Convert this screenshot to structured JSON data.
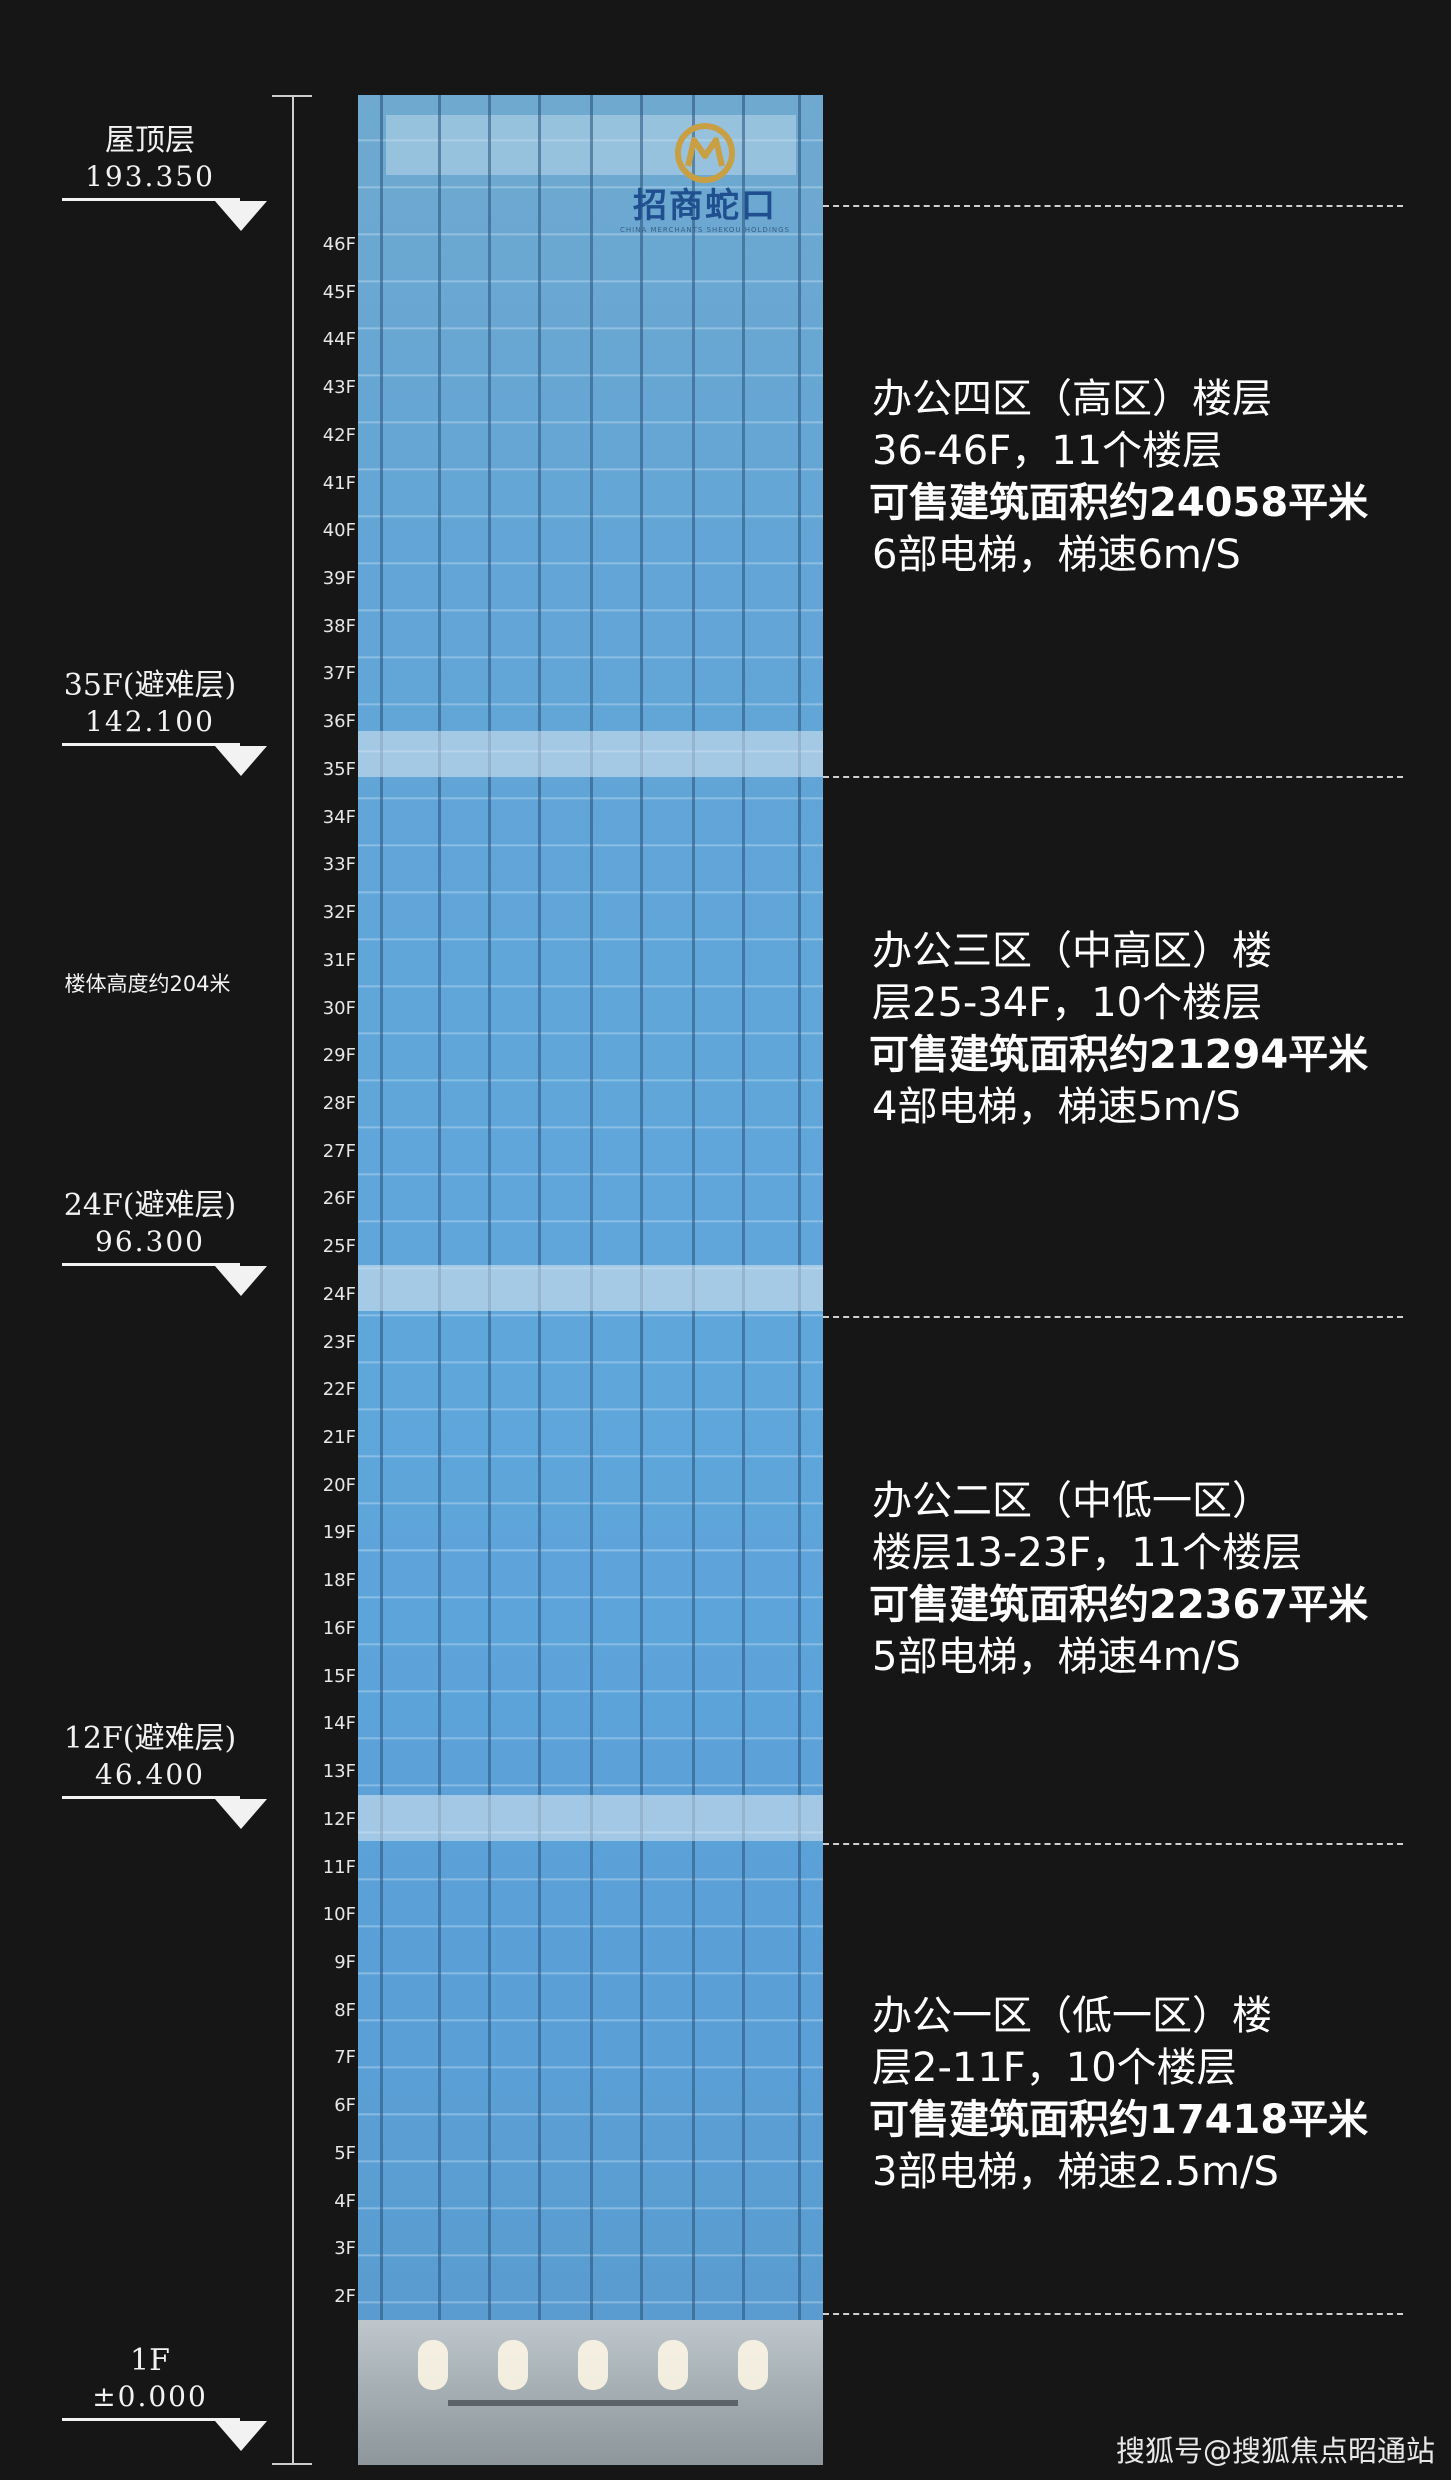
{
  "levels": [
    {
      "name": "屋顶层",
      "elevation": "193.350"
    },
    {
      "name": "35F(避难层)",
      "elevation": "142.100"
    },
    {
      "name": "24F(避难层)",
      "elevation": "96.300"
    },
    {
      "name": "12F(避难层)",
      "elevation": "46.400"
    },
    {
      "name": "1F",
      "elevation": "±0.000"
    }
  ],
  "height_note": "楼体高度约204米",
  "floors": [
    "46F",
    "45F",
    "44F",
    "43F",
    "42F",
    "41F",
    "40F",
    "39F",
    "38F",
    "37F",
    "36F",
    "35F",
    "34F",
    "33F",
    "32F",
    "31F",
    "30F",
    "29F",
    "28F",
    "27F",
    "26F",
    "25F",
    "24F",
    "23F",
    "22F",
    "21F",
    "20F",
    "19F",
    "18F",
    "16F",
    "15F",
    "14F",
    "13F",
    "12F",
    "11F",
    "10F",
    "9F",
    "8F",
    "7F",
    "6F",
    "5F",
    "4F",
    "3F",
    "2F"
  ],
  "logo": {
    "cn": "招商蛇口",
    "en": "CHINA MERCHANTS SHEKOU HOLDINGS",
    "accent": "#c8a043",
    "blue": "#1f4f8f"
  },
  "zones": [
    {
      "line1": "办公四区（高区）楼层",
      "line2": "36-46F，11个楼层",
      "line3": "可售建筑面积约24058平米",
      "line4": "6部电梯，梯速6m/S"
    },
    {
      "line1": "办公三区（中高区）楼",
      "line2": "层25-34F，10个楼层",
      "line3": "可售建筑面积约21294平米",
      "line4": "4部电梯，梯速5m/S"
    },
    {
      "line1": "办公二区（中低一区）",
      "line2": "楼层13-23F，11个楼层",
      "line3": "可售建筑面积约22367平米",
      "line4": "5部电梯，梯速4m/S"
    },
    {
      "line1": "办公一区（低一区）楼",
      "line2": "层2-11F，10个楼层",
      "line3": "可售建筑面积约17418平米",
      "line4": "3部电梯，梯速2.5m/S"
    }
  ],
  "watermark": "搜狐号@搜狐焦点昭通站",
  "colors": {
    "background": "#161616",
    "glass": "#5fa6db",
    "text": "#ffffff"
  }
}
